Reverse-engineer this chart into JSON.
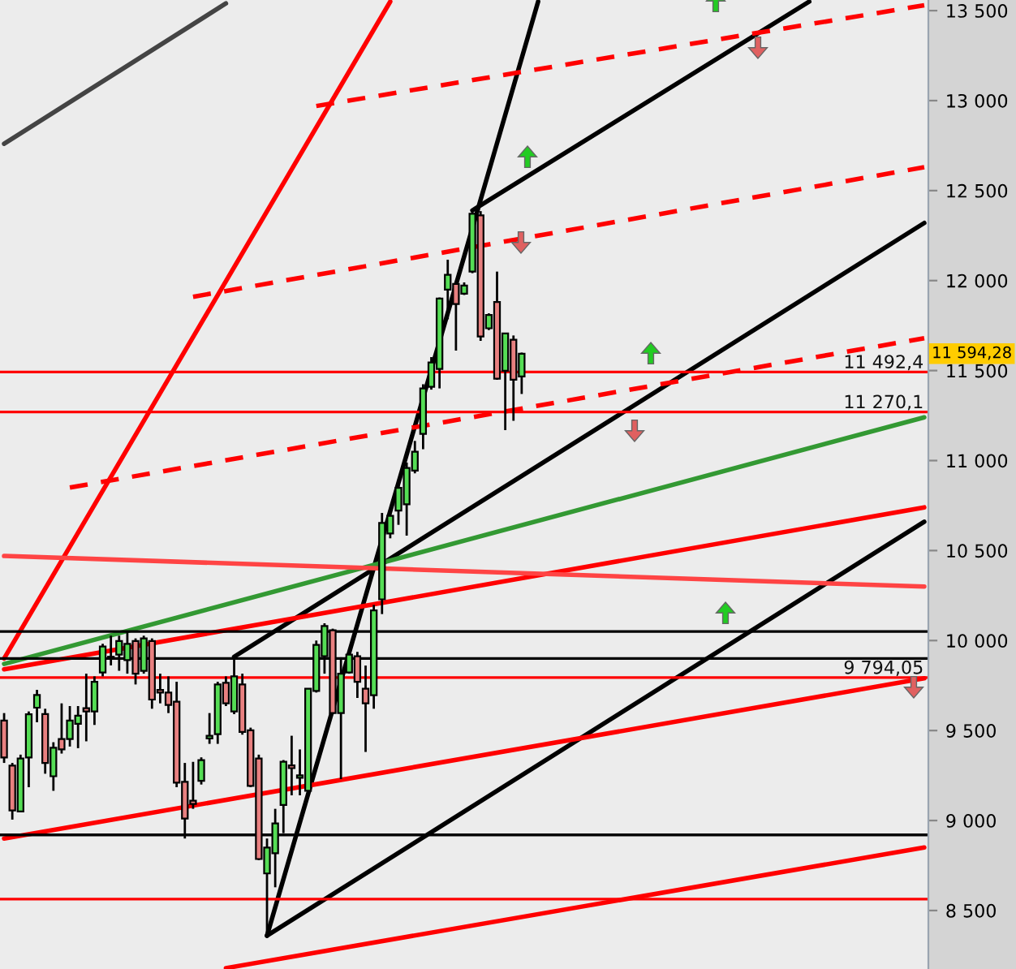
{
  "chart_data": {
    "type": "candlestick",
    "categories": [
      null,
      null,
      null,
      null,
      null,
      null,
      null,
      null,
      null,
      null,
      null,
      null,
      null,
      null,
      null,
      null,
      null,
      null,
      null,
      null,
      null,
      null,
      null,
      null,
      null,
      null,
      null,
      null,
      null,
      null,
      null,
      null,
      null,
      null,
      null,
      null,
      null,
      null,
      null,
      null,
      null,
      null,
      null,
      null,
      null,
      null,
      null,
      null,
      null,
      null,
      null,
      null,
      null,
      null,
      null,
      null,
      null,
      null,
      null,
      null,
      null,
      null,
      null,
      null,
      null,
      null,
      null,
      null,
      null,
      null,
      null,
      null,
      null,
      null,
      null,
      null,
      null,
      null,
      null,
      null,
      null,
      null,
      null,
      null,
      null,
      null,
      null,
      null,
      null,
      null,
      null,
      null,
      null,
      null,
      null,
      null,
      null,
      null,
      null,
      null,
      null,
      null,
      null,
      null,
      null,
      null,
      null,
      null,
      null,
      null,
      null,
      null,
      null
    ],
    "ohlc": [
      [
        9555,
        9597,
        9320,
        9350
      ],
      [
        9305,
        9320,
        9005,
        9056
      ],
      [
        9050,
        9366,
        9050,
        9345
      ],
      [
        9350,
        9606,
        9185,
        9590
      ],
      [
        9627,
        9726,
        9546,
        9697
      ],
      [
        9591,
        9621,
        9260,
        9320
      ],
      [
        9246,
        9435,
        9165,
        9404
      ],
      [
        9453,
        9651,
        9372,
        9395
      ],
      [
        9453,
        9636,
        9411,
        9555
      ],
      [
        9537,
        9636,
        9402,
        9582
      ],
      [
        9624,
        9816,
        9440,
        9606
      ],
      [
        9606,
        9801,
        9531,
        9771
      ],
      [
        9823,
        9982,
        9801,
        9967
      ],
      [
        9905,
        10027,
        9862,
        9910
      ],
      [
        9922,
        10027,
        9832,
        9997
      ],
      [
        9891,
        10048,
        9816,
        9982
      ],
      [
        9997,
        10012,
        9756,
        9816
      ],
      [
        9832,
        10027,
        9816,
        10012
      ],
      [
        9997,
        10012,
        9621,
        9672
      ],
      [
        9726,
        9816,
        9651,
        9711
      ],
      [
        9711,
        9801,
        9597,
        9642
      ],
      [
        9660,
        9771,
        9185,
        9210
      ],
      [
        9215,
        9320,
        8900,
        9011
      ],
      [
        9110,
        9326,
        9065,
        9092
      ],
      [
        9221,
        9351,
        9200,
        9336
      ],
      [
        9456,
        9597,
        9426,
        9471
      ],
      [
        9480,
        9771,
        9426,
        9756
      ],
      [
        9765,
        9801,
        9636,
        9651
      ],
      [
        9606,
        9907,
        9591,
        9801
      ],
      [
        9756,
        9816,
        9477,
        9492
      ],
      [
        9501,
        9516,
        9185,
        9192
      ],
      [
        9345,
        9366,
        8780,
        8786
      ],
      [
        8706,
        8900,
        8358,
        8850
      ],
      [
        8818,
        9065,
        8629,
        8984
      ],
      [
        9086,
        9336,
        8930,
        9327
      ],
      [
        9306,
        9471,
        9140,
        9291
      ],
      [
        9237,
        9395,
        9140,
        9251
      ],
      [
        9165,
        9732,
        9155,
        9732
      ],
      [
        9720,
        10000,
        9711,
        9976
      ],
      [
        9913,
        10096,
        9816,
        10081
      ],
      [
        10057,
        10066,
        9591,
        9597
      ],
      [
        9597,
        9907,
        9230,
        9816
      ],
      [
        9823,
        9922,
        9816,
        9922
      ],
      [
        9913,
        9937,
        9681,
        9771
      ],
      [
        9732,
        9861,
        9381,
        9651
      ],
      [
        9696,
        10198,
        9621,
        10168
      ],
      [
        10229,
        10709,
        10147,
        10653
      ],
      [
        10595,
        10718,
        10568,
        10693
      ],
      [
        10722,
        10893,
        10643,
        10848
      ],
      [
        10757,
        10989,
        10583,
        10959
      ],
      [
        10944,
        11109,
        10929,
        11049
      ],
      [
        11148,
        11424,
        11063,
        11401
      ],
      [
        11410,
        11575,
        11394,
        11545
      ],
      [
        11509,
        11906,
        11401,
        11900
      ],
      [
        11950,
        12116,
        11785,
        12032
      ],
      [
        11981,
        11996,
        11611,
        11870
      ],
      [
        11927,
        11990,
        11920,
        11972
      ],
      [
        12050,
        12386,
        12041,
        12371
      ],
      [
        12362,
        12386,
        11665,
        11689
      ],
      [
        11735,
        11818,
        11725,
        11809
      ],
      [
        11881,
        12050,
        11449,
        11455
      ],
      [
        11499,
        11710,
        11169,
        11706
      ],
      [
        11671,
        11695,
        11221,
        11449
      ],
      [
        11467,
        11600,
        11370,
        11594
      ],
      null,
      null,
      null,
      null,
      null,
      null,
      null,
      null,
      null,
      null,
      null,
      null,
      null,
      null,
      null,
      null,
      null,
      null,
      null,
      null,
      null,
      null,
      null,
      null,
      null,
      null,
      null,
      null,
      null,
      null,
      null,
      null,
      null,
      null,
      null,
      null,
      null,
      null,
      null,
      null,
      null,
      null,
      null,
      null,
      null,
      null,
      null,
      null,
      null
    ],
    "colors": [
      "#e88080",
      "#e88080",
      "#55dd55",
      "#55dd55",
      "#55dd55",
      "#e88080",
      "#55dd55",
      "#e88080",
      "#55dd55",
      "#55dd55",
      "#e88080",
      "#55dd55",
      "#55dd55",
      "#55dd55",
      "#55dd55",
      "#55dd55",
      "#e88080",
      "#55dd55",
      "#e88080",
      "#e88080",
      "#e88080",
      "#e88080",
      "#e88080",
      "#e88080",
      "#55dd55",
      "#55dd55",
      "#55dd55",
      "#e88080",
      "#55dd55",
      "#e88080",
      "#e88080",
      "#e88080",
      "#55dd55",
      "#55dd55",
      "#55dd55",
      "#e88080",
      "#55dd55",
      "#55dd55",
      "#55dd55",
      "#55dd55",
      "#e88080",
      "#55dd55",
      "#55dd55",
      "#e88080",
      "#e88080",
      "#55dd55",
      "#55dd55",
      "#55dd55",
      "#55dd55",
      "#55dd55",
      "#55dd55",
      "#55dd55",
      "#55dd55",
      "#55dd55",
      "#55dd55",
      "#e88080",
      "#55dd55",
      "#55dd55",
      "#e88080",
      "#55dd55",
      "#e88080",
      "#55dd55",
      "#e88080",
      "#55dd55",
      null,
      null,
      null,
      null,
      null,
      null,
      null,
      null,
      null,
      null,
      null,
      null,
      null,
      null,
      null,
      null,
      null,
      null,
      null,
      null,
      null,
      null,
      null,
      null,
      null,
      null,
      null,
      null,
      null,
      null,
      null,
      null,
      null,
      null,
      null,
      null,
      null,
      null,
      null,
      null,
      null,
      null,
      null,
      null,
      null,
      null,
      null,
      null,
      null
    ],
    "series": [
      {
        "type": "line",
        "color": "#444444",
        "line_style": "solid",
        "values": [
          12760,
          null,
          null,
          null,
          null,
          null,
          null,
          null,
          null,
          null,
          null,
          null,
          null,
          null,
          null,
          null,
          null,
          null,
          null,
          null,
          null,
          null,
          null,
          null,
          null,
          null,
          null,
          13540,
          null,
          null,
          null,
          null,
          null,
          null,
          null,
          null,
          null,
          null,
          null,
          null,
          null,
          null,
          null,
          null,
          null,
          null,
          null,
          null,
          null,
          null,
          null,
          null,
          null,
          null,
          null,
          null,
          null,
          null,
          null,
          null,
          null,
          null,
          null,
          null,
          null,
          null,
          null,
          null,
          null,
          null,
          null,
          null,
          null,
          null,
          null,
          null,
          null,
          null,
          null,
          null,
          null,
          null,
          null,
          null,
          null,
          null,
          null,
          null,
          null,
          null,
          null,
          null,
          null,
          null,
          null,
          null,
          null,
          null,
          null,
          null,
          null,
          null,
          null,
          null,
          null,
          null,
          null,
          null,
          null,
          null,
          null,
          null,
          null
        ]
      },
      {
        "type": "line",
        "color": "#ff0000",
        "line_style": "solid",
        "values": [
          9900,
          null,
          null,
          null,
          null,
          null,
          null,
          null,
          null,
          null,
          null,
          null,
          null,
          null,
          null,
          null,
          null,
          null,
          null,
          null,
          null,
          null,
          null,
          null,
          null,
          null,
          null,
          null,
          null,
          null,
          null,
          null,
          null,
          null,
          null,
          null,
          null,
          null,
          null,
          null,
          null,
          null,
          null,
          null,
          null,
          null,
          null,
          13550,
          null,
          null,
          null,
          null,
          null,
          null,
          null,
          null,
          null,
          null,
          null,
          null,
          null,
          null,
          null,
          null,
          null,
          null,
          null,
          null,
          null,
          null,
          null,
          null,
          null,
          null,
          null,
          null,
          null,
          null,
          null,
          null,
          null,
          null,
          null,
          null,
          null,
          null,
          null,
          null,
          null,
          null,
          null,
          null,
          null,
          null,
          null,
          null,
          null,
          null,
          null,
          null,
          null,
          null,
          null,
          null,
          null,
          null,
          null,
          null,
          null,
          null,
          null,
          null,
          null
        ]
      },
      {
        "type": "line",
        "color": "#000000",
        "line_style": "solid",
        "values": [
          null,
          null,
          null,
          null,
          null,
          null,
          null,
          null,
          null,
          null,
          null,
          null,
          null,
          null,
          null,
          null,
          null,
          null,
          null,
          null,
          null,
          null,
          null,
          null,
          null,
          null,
          null,
          null,
          null,
          null,
          null,
          null,
          8360,
          null,
          null,
          null,
          null,
          null,
          null,
          null,
          null,
          null,
          null,
          null,
          null,
          null,
          null,
          null,
          null,
          null,
          null,
          null,
          null,
          null,
          null,
          null,
          null,
          null,
          null,
          null,
          null,
          null,
          null,
          null,
          null,
          13550,
          null,
          null,
          null,
          null,
          null,
          null,
          null,
          null,
          null,
          null,
          null,
          null,
          null,
          null,
          null,
          null,
          null,
          null,
          null,
          null,
          null,
          null,
          null,
          null,
          null,
          null,
          null,
          null,
          null,
          null,
          null,
          null,
          null,
          null,
          null,
          null,
          null,
          null,
          null,
          null,
          null,
          null,
          null,
          null,
          null,
          null,
          null
        ]
      },
      {
        "type": "line",
        "color": "#000000",
        "line_style": "solid",
        "values": [
          null,
          null,
          null,
          null,
          null,
          null,
          null,
          null,
          null,
          null,
          null,
          null,
          null,
          null,
          null,
          null,
          null,
          null,
          null,
          null,
          null,
          null,
          null,
          null,
          null,
          null,
          null,
          null,
          null,
          null,
          null,
          null,
          8360,
          null,
          null,
          null,
          null,
          null,
          null,
          null,
          null,
          null,
          null,
          null,
          null,
          null,
          null,
          null,
          null,
          null,
          null,
          null,
          null,
          null,
          null,
          null,
          null,
          null,
          null,
          null,
          null,
          null,
          null,
          null,
          null,
          null,
          null,
          null,
          null,
          null,
          null,
          null,
          null,
          null,
          null,
          null,
          null,
          null,
          null,
          null,
          null,
          null,
          null,
          null,
          null,
          null,
          null,
          null,
          null,
          null,
          null,
          null,
          null,
          null,
          null,
          null,
          null,
          null,
          null,
          null,
          null,
          null,
          null,
          null,
          null,
          null,
          null,
          null,
          null,
          null,
          null,
          null,
          10660
        ]
      },
      {
        "type": "line",
        "color": "#000000",
        "line_style": "solid",
        "values": [
          null,
          null,
          null,
          null,
          null,
          null,
          null,
          null,
          null,
          null,
          null,
          null,
          null,
          null,
          null,
          null,
          null,
          null,
          null,
          null,
          null,
          null,
          null,
          null,
          null,
          null,
          null,
          null,
          9910,
          null,
          null,
          null,
          null,
          null,
          null,
          null,
          null,
          null,
          null,
          null,
          null,
          null,
          null,
          null,
          null,
          null,
          null,
          null,
          null,
          null,
          null,
          null,
          null,
          null,
          null,
          null,
          null,
          null,
          null,
          null,
          null,
          null,
          null,
          null,
          null,
          null,
          null,
          null,
          null,
          null,
          null,
          null,
          null,
          null,
          null,
          null,
          null,
          null,
          null,
          null,
          null,
          null,
          null,
          null,
          null,
          null,
          null,
          null,
          null,
          null,
          null,
          null,
          null,
          null,
          null,
          null,
          null,
          null,
          null,
          null,
          null,
          null,
          null,
          null,
          null,
          null,
          null,
          null,
          null,
          null,
          null,
          null,
          12320
        ]
      },
      {
        "type": "line",
        "color": "#000000",
        "line_style": "solid",
        "values": [
          null,
          null,
          null,
          null,
          null,
          null,
          null,
          null,
          null,
          null,
          null,
          null,
          null,
          null,
          null,
          null,
          null,
          null,
          null,
          null,
          null,
          null,
          null,
          null,
          null,
          null,
          null,
          null,
          null,
          null,
          null,
          null,
          null,
          null,
          null,
          null,
          null,
          null,
          null,
          null,
          null,
          null,
          null,
          null,
          null,
          null,
          null,
          null,
          null,
          null,
          null,
          null,
          null,
          null,
          null,
          null,
          null,
          12390,
          null,
          null,
          null,
          null,
          null,
          null,
          null,
          null,
          null,
          null,
          null,
          null,
          null,
          null,
          null,
          null,
          null,
          null,
          null,
          null,
          null,
          null,
          null,
          null,
          null,
          null,
          null,
          null,
          null,
          null,
          null,
          null,
          null,
          null,
          null,
          null,
          null,
          null,
          null,
          null,
          13550,
          null,
          null,
          null,
          null,
          null,
          null,
          null,
          null,
          null,
          null,
          null,
          null,
          null,
          null
        ]
      },
      {
        "type": "line",
        "color": "#ff0000",
        "line_style": "dashed",
        "values": [
          null,
          null,
          null,
          null,
          null,
          null,
          null,
          null,
          null,
          null,
          null,
          null,
          null,
          null,
          null,
          null,
          null,
          null,
          null,
          null,
          null,
          null,
          null,
          null,
          null,
          null,
          null,
          null,
          null,
          null,
          null,
          null,
          null,
          null,
          null,
          null,
          null,
          null,
          12970,
          null,
          null,
          null,
          null,
          null,
          null,
          null,
          null,
          null,
          null,
          null,
          null,
          null,
          null,
          null,
          null,
          null,
          null,
          null,
          null,
          null,
          null,
          null,
          null,
          null,
          null,
          null,
          null,
          null,
          null,
          null,
          null,
          null,
          null,
          null,
          null,
          null,
          null,
          null,
          null,
          null,
          null,
          null,
          null,
          null,
          null,
          null,
          null,
          null,
          null,
          null,
          null,
          null,
          null,
          null,
          null,
          null,
          null,
          null,
          null,
          null,
          null,
          null,
          null,
          null,
          null,
          null,
          null,
          null,
          null,
          null,
          null,
          null,
          13530
        ]
      },
      {
        "type": "line",
        "color": "#ff0000",
        "line_style": "dashed",
        "values": [
          null,
          null,
          null,
          null,
          null,
          null,
          null,
          null,
          null,
          null,
          null,
          null,
          null,
          null,
          null,
          null,
          null,
          null,
          null,
          null,
          null,
          null,
          null,
          11910,
          null,
          null,
          null,
          null,
          null,
          null,
          null,
          null,
          null,
          null,
          null,
          null,
          null,
          null,
          null,
          null,
          null,
          null,
          null,
          null,
          null,
          null,
          null,
          null,
          null,
          null,
          null,
          null,
          null,
          null,
          null,
          null,
          null,
          null,
          null,
          null,
          null,
          null,
          null,
          null,
          null,
          null,
          null,
          null,
          null,
          null,
          null,
          null,
          null,
          null,
          null,
          null,
          null,
          null,
          null,
          null,
          null,
          null,
          null,
          null,
          null,
          null,
          null,
          null,
          null,
          null,
          null,
          null,
          null,
          null,
          null,
          null,
          null,
          null,
          null,
          null,
          null,
          null,
          null,
          null,
          null,
          null,
          null,
          null,
          null,
          null,
          null,
          null,
          12630
        ]
      },
      {
        "type": "line",
        "color": "#ff0000",
        "line_style": "dashed",
        "values": [
          null,
          null,
          null,
          null,
          null,
          null,
          null,
          null,
          10850,
          null,
          null,
          null,
          null,
          null,
          null,
          null,
          null,
          null,
          null,
          null,
          null,
          null,
          null,
          null,
          null,
          null,
          null,
          null,
          null,
          null,
          null,
          null,
          null,
          null,
          null,
          null,
          null,
          null,
          null,
          null,
          null,
          null,
          null,
          null,
          null,
          null,
          null,
          null,
          null,
          null,
          null,
          null,
          null,
          null,
          null,
          null,
          null,
          null,
          null,
          null,
          null,
          null,
          null,
          null,
          null,
          null,
          null,
          null,
          null,
          null,
          null,
          null,
          null,
          null,
          null,
          null,
          null,
          null,
          null,
          null,
          null,
          null,
          null,
          null,
          null,
          null,
          null,
          null,
          null,
          null,
          null,
          null,
          null,
          null,
          null,
          null,
          null,
          null,
          null,
          null,
          null,
          null,
          null,
          null,
          null,
          null,
          null,
          null,
          null,
          null,
          null,
          null,
          11680
        ]
      },
      {
        "type": "line",
        "color": "#ff0000",
        "line_style": "solid",
        "values": [
          9840,
          null,
          null,
          null,
          null,
          null,
          null,
          null,
          null,
          null,
          null,
          null,
          null,
          null,
          null,
          null,
          null,
          null,
          null,
          null,
          null,
          null,
          null,
          null,
          null,
          null,
          null,
          null,
          null,
          null,
          null,
          null,
          null,
          null,
          null,
          null,
          null,
          null,
          null,
          null,
          null,
          null,
          null,
          null,
          null,
          null,
          null,
          null,
          null,
          null,
          null,
          null,
          null,
          null,
          null,
          null,
          null,
          null,
          null,
          null,
          null,
          null,
          null,
          null,
          null,
          null,
          null,
          null,
          null,
          null,
          null,
          null,
          null,
          null,
          null,
          null,
          null,
          null,
          null,
          null,
          null,
          null,
          null,
          null,
          null,
          null,
          null,
          null,
          null,
          null,
          null,
          null,
          null,
          null,
          null,
          null,
          null,
          null,
          null,
          null,
          null,
          null,
          null,
          null,
          null,
          null,
          null,
          null,
          null,
          null,
          null,
          null,
          10740
        ]
      },
      {
        "type": "line",
        "color": "#ff0000",
        "line_style": "solid",
        "values": [
          8900,
          null,
          null,
          null,
          null,
          null,
          null,
          null,
          null,
          null,
          null,
          null,
          null,
          null,
          null,
          null,
          null,
          null,
          null,
          null,
          null,
          null,
          null,
          null,
          null,
          null,
          null,
          null,
          null,
          null,
          null,
          null,
          null,
          null,
          null,
          null,
          null,
          null,
          null,
          null,
          null,
          null,
          null,
          null,
          null,
          null,
          null,
          null,
          null,
          null,
          null,
          null,
          null,
          null,
          null,
          null,
          null,
          null,
          null,
          null,
          null,
          null,
          null,
          null,
          null,
          null,
          null,
          null,
          null,
          null,
          null,
          null,
          null,
          null,
          null,
          null,
          null,
          null,
          null,
          null,
          null,
          null,
          null,
          null,
          null,
          null,
          null,
          null,
          null,
          null,
          null,
          null,
          null,
          null,
          null,
          null,
          null,
          null,
          null,
          null,
          null,
          null,
          null,
          null,
          null,
          null,
          null,
          null,
          null,
          null,
          null,
          null,
          9790
        ]
      },
      {
        "type": "line",
        "color": "#ff0000",
        "line_style": "solid",
        "values": [
          null,
          null,
          null,
          null,
          null,
          null,
          null,
          null,
          null,
          null,
          null,
          null,
          null,
          null,
          null,
          null,
          null,
          null,
          null,
          null,
          null,
          null,
          null,
          null,
          null,
          null,
          null,
          8180,
          null,
          null,
          null,
          null,
          null,
          null,
          null,
          null,
          null,
          null,
          null,
          null,
          null,
          null,
          null,
          null,
          null,
          null,
          null,
          null,
          null,
          null,
          null,
          null,
          null,
          null,
          null,
          null,
          null,
          null,
          null,
          null,
          null,
          null,
          null,
          null,
          null,
          null,
          null,
          null,
          null,
          null,
          null,
          null,
          null,
          null,
          null,
          null,
          null,
          null,
          null,
          null,
          null,
          null,
          null,
          null,
          null,
          null,
          null,
          null,
          null,
          null,
          null,
          null,
          null,
          null,
          null,
          null,
          null,
          null,
          null,
          null,
          null,
          null,
          null,
          null,
          null,
          null,
          null,
          null,
          null,
          null,
          null,
          null,
          8850
        ]
      },
      {
        "type": "line",
        "color": "#339933",
        "line_style": "solid",
        "values": [
          9870,
          null,
          null,
          null,
          null,
          null,
          null,
          null,
          null,
          null,
          null,
          null,
          null,
          null,
          null,
          null,
          null,
          null,
          null,
          null,
          null,
          null,
          null,
          null,
          null,
          null,
          null,
          null,
          null,
          null,
          null,
          null,
          null,
          null,
          null,
          null,
          null,
          null,
          null,
          null,
          null,
          null,
          null,
          null,
          null,
          null,
          null,
          null,
          null,
          null,
          null,
          null,
          null,
          null,
          null,
          null,
          null,
          null,
          null,
          null,
          null,
          null,
          null,
          null,
          null,
          null,
          null,
          null,
          null,
          null,
          null,
          null,
          null,
          null,
          null,
          null,
          null,
          null,
          null,
          null,
          null,
          null,
          null,
          null,
          null,
          null,
          null,
          null,
          null,
          null,
          null,
          null,
          null,
          null,
          null,
          null,
          null,
          null,
          null,
          null,
          null,
          null,
          null,
          null,
          null,
          null,
          null,
          null,
          null,
          null,
          null,
          null,
          11240
        ]
      },
      {
        "type": "line",
        "color": "#ff4444",
        "line_style": "solid",
        "values": [
          10470,
          null,
          null,
          null,
          null,
          null,
          null,
          null,
          null,
          null,
          null,
          null,
          null,
          null,
          null,
          null,
          null,
          null,
          null,
          null,
          null,
          null,
          null,
          null,
          null,
          null,
          null,
          null,
          null,
          null,
          null,
          null,
          null,
          null,
          null,
          null,
          null,
          null,
          null,
          null,
          null,
          null,
          null,
          null,
          null,
          null,
          null,
          null,
          null,
          null,
          null,
          null,
          null,
          null,
          null,
          null,
          null,
          null,
          null,
          null,
          null,
          null,
          null,
          null,
          null,
          null,
          null,
          null,
          null,
          null,
          null,
          null,
          null,
          null,
          null,
          null,
          null,
          null,
          null,
          null,
          null,
          null,
          null,
          null,
          null,
          null,
          null,
          null,
          null,
          null,
          null,
          null,
          null,
          null,
          null,
          null,
          null,
          null,
          null,
          null,
          null,
          null,
          null,
          null,
          null,
          null,
          null,
          null,
          null,
          null,
          null,
          null,
          10300
        ]
      }
    ],
    "ref_lines": [
      {
        "axis": "y",
        "value": 11492.4,
        "label": "11 492,4",
        "color": "#ff0000"
      },
      {
        "axis": "y",
        "value": 11270.1,
        "label": "11 270,1",
        "color": "#ff0000"
      },
      {
        "axis": "y",
        "value": 10050,
        "label": null,
        "color": "#000000"
      },
      {
        "axis": "y",
        "value": 9900,
        "label": null,
        "color": "#000000"
      },
      {
        "axis": "y",
        "value": 9794.05,
        "label": "9 794,05",
        "color": "#ff0000"
      },
      {
        "axis": "y",
        "value": 8920,
        "label": null,
        "color": "#000000"
      },
      {
        "axis": "y",
        "value": 8563,
        "label": null,
        "color": "#ff0000"
      }
    ],
    "annotations": [
      "11 594,28"
    ],
    "ylim": [
      8175,
      13559
    ],
    "yticks": [
      {
        "value": 8500,
        "label": "8 500"
      },
      {
        "value": 9000,
        "label": "9 000"
      },
      {
        "value": 9500,
        "label": "9 500"
      },
      {
        "value": 10000,
        "label": "10 000"
      },
      {
        "value": 10500,
        "label": "10 500"
      },
      {
        "value": 11000,
        "label": "11 000"
      },
      {
        "value": 11500,
        "label": "11 500"
      },
      {
        "value": 12000,
        "label": "12 000"
      },
      {
        "value": 12500,
        "label": "12 500"
      },
      {
        "value": 13000,
        "label": "13 000"
      },
      {
        "value": 13500,
        "label": "13 500"
      }
    ],
    "tick_labels": "y"
  }
}
